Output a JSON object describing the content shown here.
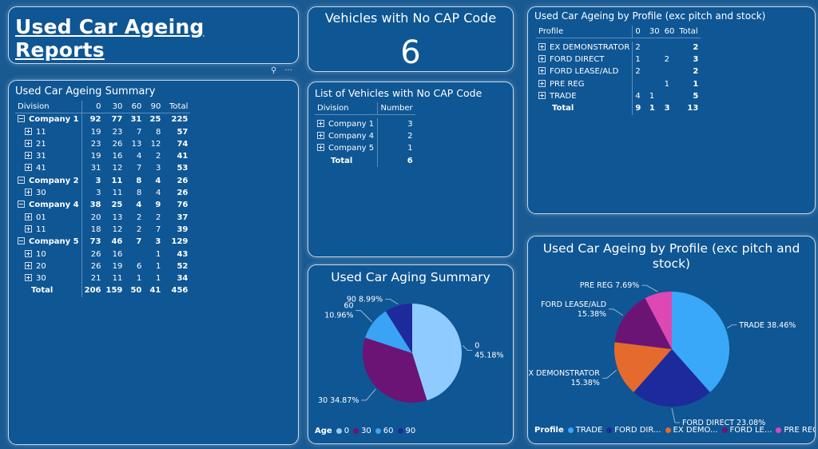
{
  "header": {
    "title": "Used Car Ageing Reports"
  },
  "kpi": {
    "title": "Vehicles with No CAP Code",
    "value": "6"
  },
  "summary": {
    "title": "Used Car Ageing Summary",
    "columns": [
      "Division",
      "0",
      "30",
      "60",
      "90",
      "Total"
    ],
    "rows": [
      {
        "level": 0,
        "expand": "minus",
        "label": "Company 1",
        "values": [
          "92",
          "77",
          "31",
          "25",
          "225"
        ]
      },
      {
        "level": 1,
        "expand": "plus",
        "label": "11",
        "values": [
          "19",
          "23",
          "7",
          "8",
          "57"
        ]
      },
      {
        "level": 1,
        "expand": "plus",
        "label": "21",
        "values": [
          "23",
          "26",
          "13",
          "12",
          "74"
        ]
      },
      {
        "level": 1,
        "expand": "plus",
        "label": "31",
        "values": [
          "19",
          "16",
          "4",
          "2",
          "41"
        ]
      },
      {
        "level": 1,
        "expand": "plus",
        "label": "41",
        "values": [
          "31",
          "12",
          "7",
          "3",
          "53"
        ]
      },
      {
        "level": 0,
        "expand": "minus",
        "label": "Company 2",
        "values": [
          "3",
          "11",
          "8",
          "4",
          "26"
        ]
      },
      {
        "level": 1,
        "expand": "plus",
        "label": "30",
        "values": [
          "3",
          "11",
          "8",
          "4",
          "26"
        ]
      },
      {
        "level": 0,
        "expand": "minus",
        "label": "Company 4",
        "values": [
          "38",
          "25",
          "4",
          "9",
          "76"
        ]
      },
      {
        "level": 1,
        "expand": "plus",
        "label": "01",
        "values": [
          "20",
          "13",
          "2",
          "2",
          "37"
        ]
      },
      {
        "level": 1,
        "expand": "plus",
        "label": "11",
        "values": [
          "18",
          "12",
          "2",
          "7",
          "39"
        ]
      },
      {
        "level": 0,
        "expand": "minus",
        "label": "Company 5",
        "values": [
          "73",
          "46",
          "7",
          "3",
          "129"
        ]
      },
      {
        "level": 1,
        "expand": "plus",
        "label": "10",
        "values": [
          "26",
          "16",
          "",
          "1",
          "43"
        ]
      },
      {
        "level": 1,
        "expand": "plus",
        "label": "20",
        "values": [
          "26",
          "19",
          "6",
          "1",
          "52"
        ]
      },
      {
        "level": 1,
        "expand": "plus",
        "label": "30",
        "values": [
          "21",
          "11",
          "1",
          "1",
          "34"
        ]
      },
      {
        "level": -1,
        "expand": "",
        "label": "Total",
        "values": [
          "206",
          "159",
          "50",
          "41",
          "456"
        ]
      }
    ]
  },
  "nocap_list": {
    "title": "List of Vehicles with No CAP Code",
    "columns": [
      "Division",
      "Number"
    ],
    "rows": [
      {
        "label": "Company 1",
        "value": "3",
        "expand": true
      },
      {
        "label": "Company 4",
        "value": "2",
        "expand": true
      },
      {
        "label": "Company 5",
        "value": "1",
        "expand": true
      },
      {
        "label": "Total",
        "value": "6",
        "expand": false
      }
    ]
  },
  "profile_matrix": {
    "title": "Used Car Ageing by Profile (exc pitch and stock)",
    "columns": [
      "Profile",
      "0",
      "30",
      "60",
      "Total"
    ],
    "rows": [
      {
        "label": "EX DEMONSTRATOR",
        "values": [
          "2",
          "",
          "",
          "2"
        ],
        "expand": true
      },
      {
        "label": "FORD DIRECT",
        "values": [
          "1",
          "",
          "2",
          "3"
        ],
        "expand": true
      },
      {
        "label": "FORD LEASE/ALD",
        "values": [
          "2",
          "",
          "",
          "2"
        ],
        "expand": true
      },
      {
        "label": "PRE REG",
        "values": [
          "",
          "",
          "1",
          "1"
        ],
        "expand": true
      },
      {
        "label": "TRADE",
        "values": [
          "4",
          "1",
          "",
          "5"
        ],
        "expand": true
      },
      {
        "label": "Total",
        "values": [
          "9",
          "1",
          "3",
          "13"
        ],
        "expand": false
      }
    ]
  },
  "chart_data": [
    {
      "type": "pie",
      "title": "Used Car Aging Summary",
      "legend_title": "Age",
      "categories": [
        "0",
        "30",
        "60",
        "90"
      ],
      "values": [
        45.18,
        34.87,
        10.96,
        8.99
      ],
      "value_labels": [
        "45.18%",
        "34.87%",
        "10.96%",
        "8.99%"
      ],
      "colors": [
        "#8fcbff",
        "#6b1475",
        "#3aa3f5",
        "#1d2a9c"
      ],
      "legend_labels": [
        "0",
        "30",
        "60",
        "90"
      ],
      "legend_placement": "bottom"
    },
    {
      "type": "pie",
      "title": "Used Car Ageing by Profile (exc pitch and stock)",
      "legend_title": "Profile",
      "categories": [
        "TRADE",
        "FORD DIRECT",
        "EX DEMONSTRATOR",
        "FORD LEASE/ALD",
        "PRE REG"
      ],
      "values": [
        38.46,
        23.08,
        15.38,
        15.38,
        7.69
      ],
      "value_labels": [
        "38.46%",
        "23.08%",
        "15.38%",
        "15.38%",
        "7.69%"
      ],
      "colors": [
        "#3aa8f8",
        "#1d2a9c",
        "#e46a2e",
        "#6b1475",
        "#de48b4"
      ],
      "legend_labels": [
        "TRADE",
        "FORD DIR...",
        "EX DEMO...",
        "FORD LE...",
        "PRE REG"
      ],
      "legend_placement": "bottom"
    }
  ],
  "toolbar": {
    "pin_icon": "pin-icon",
    "more_icon": "more-options-icon",
    "pin_glyph": "⚲",
    "more_glyph": "···"
  }
}
